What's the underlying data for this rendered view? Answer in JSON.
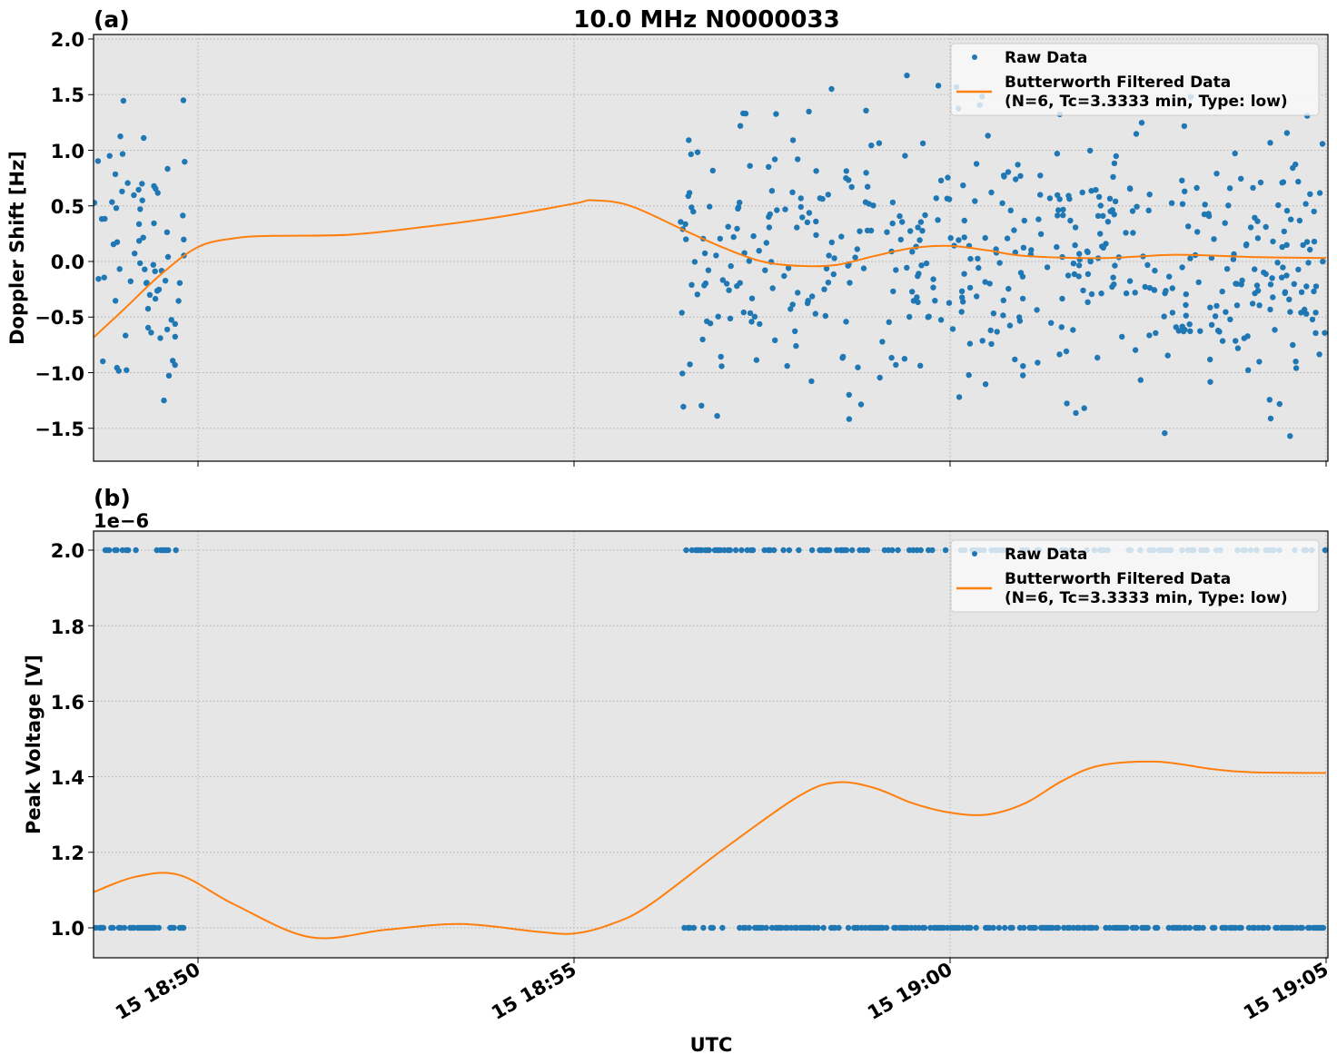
{
  "figure": {
    "title": "10.0 MHz N0000033",
    "xlabel": "UTC",
    "x_ticks": [
      "15 18:50",
      "15 18:55",
      "15 19:00",
      "15 19:05"
    ],
    "colors": {
      "raw": "#1f77b4",
      "filtered": "#ff7f0e",
      "axes_bg": "#e6e6e6",
      "grid": "#b0b0b0"
    }
  },
  "panel_a": {
    "label": "(a)",
    "ylabel": "Doppler Shift [Hz]",
    "y_ticks": [
      "2.0",
      "1.5",
      "1.0",
      "0.5",
      "0.0",
      "−0.5",
      "−1.0",
      "−1.5"
    ],
    "legend": {
      "raw": "Raw Data",
      "filtered_line1": "Butterworth Filtered Data",
      "filtered_line2": "(N=6, Tc=3.3333 min, Type: low)"
    }
  },
  "panel_b": {
    "label": "(b)",
    "offset_text": "1e−6",
    "ylabel": "Peak Voltage [V]",
    "y_ticks": [
      "2.0",
      "1.8",
      "1.6",
      "1.4",
      "1.2",
      "1.0"
    ],
    "legend": {
      "raw": "Raw Data",
      "filtered_line1": "Butterworth Filtered Data",
      "filtered_line2": "(N=6, Tc=3.3333 min, Type: low)"
    }
  },
  "chart_data": [
    {
      "type": "scatter",
      "title": "10.0 MHz N0000033",
      "panel": "(a)",
      "xlabel": "UTC",
      "ylabel": "Doppler Shift [Hz]",
      "x_tick_labels": [
        "15 18:50",
        "15 18:55",
        "15 19:00",
        "15 19:05"
      ],
      "xlim": [
        "18:48:37",
        "19:05:00"
      ],
      "ylim": [
        -1.8,
        2.04
      ],
      "grid": true,
      "legend_position": "upper right",
      "series": [
        {
          "name": "Raw Data",
          "kind": "scatter",
          "description": "Dense noisy points in two time windows: ~18:48:37-18:49:50 and ~18:56:25-19:05:00, values spread roughly between -1.6 and 1.85 Hz",
          "segments": [
            {
              "x_start": "18:48:37",
              "x_end": "18:49:50",
              "y_range": [
                -1.25,
                1.52
              ]
            },
            {
              "x_start": "18:56:25",
              "x_end": "19:05:00",
              "y_range": [
                -1.62,
                1.85
              ]
            }
          ]
        },
        {
          "name": "Butterworth Filtered Data (N=6, Tc=3.3333 min, Type: low)",
          "kind": "line",
          "x": [
            "18:48:37",
            "18:49:00",
            "18:49:30",
            "18:50:00",
            "18:50:30",
            "18:51:00",
            "18:52:00",
            "18:53:00",
            "18:54:00",
            "18:55:00",
            "18:55:15",
            "18:55:45",
            "18:56:30",
            "18:57:00",
            "18:57:30",
            "18:58:00",
            "18:58:30",
            "18:59:00",
            "18:59:30",
            "19:00:00",
            "19:00:30",
            "19:01:00",
            "19:02:00",
            "19:03:00",
            "19:04:00",
            "19:05:00"
          ],
          "y": [
            -0.68,
            -0.44,
            -0.12,
            0.13,
            0.21,
            0.23,
            0.24,
            0.31,
            0.4,
            0.52,
            0.55,
            0.5,
            0.27,
            0.12,
            0.0,
            -0.04,
            -0.03,
            0.05,
            0.12,
            0.14,
            0.1,
            0.05,
            0.03,
            0.06,
            0.04,
            0.03
          ]
        }
      ]
    },
    {
      "type": "scatter",
      "panel": "(b)",
      "xlabel": "UTC",
      "ylabel": "Peak Voltage [V]",
      "y_scale_offset": "1e-6",
      "x_tick_labels": [
        "15 18:50",
        "15 18:55",
        "15 19:00",
        "15 19:05"
      ],
      "xlim": [
        "18:48:37",
        "19:05:00"
      ],
      "ylim": [
        9.2e-07,
        2.05e-06
      ],
      "grid": true,
      "legend_position": "upper right",
      "series": [
        {
          "name": "Raw Data",
          "kind": "scatter",
          "description": "Quantized values at exactly 1.0e-6 V and 2.0e-6 V, present in windows ~18:48:37-18:49:50 and ~18:56:25-19:05:00",
          "levels": [
            1e-06,
            2e-06
          ]
        },
        {
          "name": "Butterworth Filtered Data (N=6, Tc=3.3333 min, Type: low)",
          "kind": "line",
          "x": [
            "18:48:37",
            "18:49:10",
            "18:49:45",
            "18:50:30",
            "18:51:30",
            "18:52:30",
            "18:53:30",
            "18:54:30",
            "18:55:00",
            "18:55:30",
            "18:56:00",
            "18:57:00",
            "18:58:00",
            "18:58:30",
            "18:59:00",
            "18:59:30",
            "19:00:00",
            "19:00:30",
            "19:01:00",
            "19:01:30",
            "19:02:00",
            "19:02:45",
            "19:03:30",
            "19:04:00",
            "19:05:00"
          ],
          "y": [
            1.095e-06,
            1.135e-06,
            1.14e-06,
            1.06e-06,
            9.75e-07,
            9.95e-07,
            1.01e-06,
            9.9e-07,
            9.85e-07,
            1.01e-06,
            1.06e-06,
            1.21e-06,
            1.35e-06,
            1.385e-06,
            1.37e-06,
            1.33e-06,
            1.305e-06,
            1.3e-06,
            1.33e-06,
            1.39e-06,
            1.43e-06,
            1.44e-06,
            1.42e-06,
            1.412e-06,
            1.41e-06
          ]
        }
      ]
    }
  ]
}
